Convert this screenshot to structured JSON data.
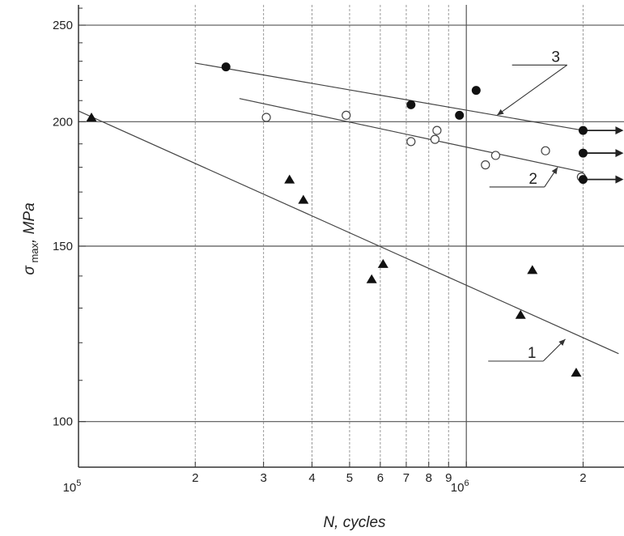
{
  "chart_data": {
    "type": "scatter",
    "title": "",
    "xlabel": "N, cycles",
    "ylabel_symbol": "σ",
    "ylabel_sub": "max",
    "ylabel_unit": ", MPa",
    "x_scale": "log",
    "y_scale": "log",
    "xlim": [
      100000,
      2550000
    ],
    "ylim": [
      90,
      262
    ],
    "x_major_ticks": [
      {
        "value": 100000,
        "label": "10",
        "exp": "5"
      },
      {
        "value": 1000000,
        "label": "10",
        "exp": "6"
      }
    ],
    "x_minor_ticks": [
      {
        "value": 200000,
        "label": "2"
      },
      {
        "value": 300000,
        "label": "3"
      },
      {
        "value": 400000,
        "label": "4"
      },
      {
        "value": 500000,
        "label": "5"
      },
      {
        "value": 600000,
        "label": "6"
      },
      {
        "value": 700000,
        "label": "7"
      },
      {
        "value": 800000,
        "label": "8"
      },
      {
        "value": 900000,
        "label": "9"
      },
      {
        "value": 2000000,
        "label": "2"
      }
    ],
    "y_ticks": [
      {
        "value": 100,
        "label": "100"
      },
      {
        "value": 150,
        "label": "150"
      },
      {
        "value": 200,
        "label": "200"
      },
      {
        "value": 250,
        "label": "250"
      }
    ],
    "grid": true,
    "series": [
      {
        "name": "1",
        "marker": "filled-triangle",
        "points": [
          {
            "x": 108000,
            "y": 202
          },
          {
            "x": 350000,
            "y": 175
          },
          {
            "x": 380000,
            "y": 167
          },
          {
            "x": 570000,
            "y": 139
          },
          {
            "x": 610000,
            "y": 144
          },
          {
            "x": 1380000,
            "y": 128
          },
          {
            "x": 1480000,
            "y": 142
          },
          {
            "x": 1920000,
            "y": 112
          }
        ],
        "fit_line": [
          {
            "x": 100000,
            "y": 205
          },
          {
            "x": 2470000,
            "y": 117
          }
        ],
        "runouts": []
      },
      {
        "name": "2",
        "marker": "open-circle",
        "points": [
          {
            "x": 305000,
            "y": 202
          },
          {
            "x": 490000,
            "y": 203
          },
          {
            "x": 720000,
            "y": 191
          },
          {
            "x": 830000,
            "y": 192
          },
          {
            "x": 840000,
            "y": 196
          },
          {
            "x": 1120000,
            "y": 181
          },
          {
            "x": 1190000,
            "y": 185
          },
          {
            "x": 1600000,
            "y": 187
          },
          {
            "x": 1980000,
            "y": 176
          }
        ],
        "fit_line": [
          {
            "x": 260000,
            "y": 211
          },
          {
            "x": 2000000,
            "y": 178
          }
        ],
        "runouts": []
      },
      {
        "name": "3",
        "marker": "filled-circle",
        "points": [
          {
            "x": 240000,
            "y": 227
          },
          {
            "x": 720000,
            "y": 208
          },
          {
            "x": 960000,
            "y": 203
          },
          {
            "x": 1060000,
            "y": 215
          },
          {
            "x": 2000000,
            "y": 196
          },
          {
            "x": 2000000,
            "y": 186
          },
          {
            "x": 2000000,
            "y": 175
          }
        ],
        "fit_line": [
          {
            "x": 200000,
            "y": 229
          },
          {
            "x": 2000000,
            "y": 196
          }
        ],
        "runouts": [
          {
            "x": 2000000,
            "y": 196
          },
          {
            "x": 2000000,
            "y": 186
          },
          {
            "x": 2000000,
            "y": 175
          }
        ]
      }
    ],
    "annotations": [
      {
        "text": "1",
        "series": "1",
        "label_at": {
          "x": 1380000,
          "y": 115
        },
        "points_to": {
          "x": 1800000,
          "y": 121
        }
      },
      {
        "text": "2",
        "series": "2",
        "label_at": {
          "x": 1390000,
          "y": 172
        },
        "points_to": {
          "x": 1720000,
          "y": 180
        }
      },
      {
        "text": "3",
        "series": "3",
        "label_at": {
          "x": 1590000,
          "y": 228
        },
        "points_to": {
          "x": 1200000,
          "y": 203
        }
      }
    ]
  }
}
